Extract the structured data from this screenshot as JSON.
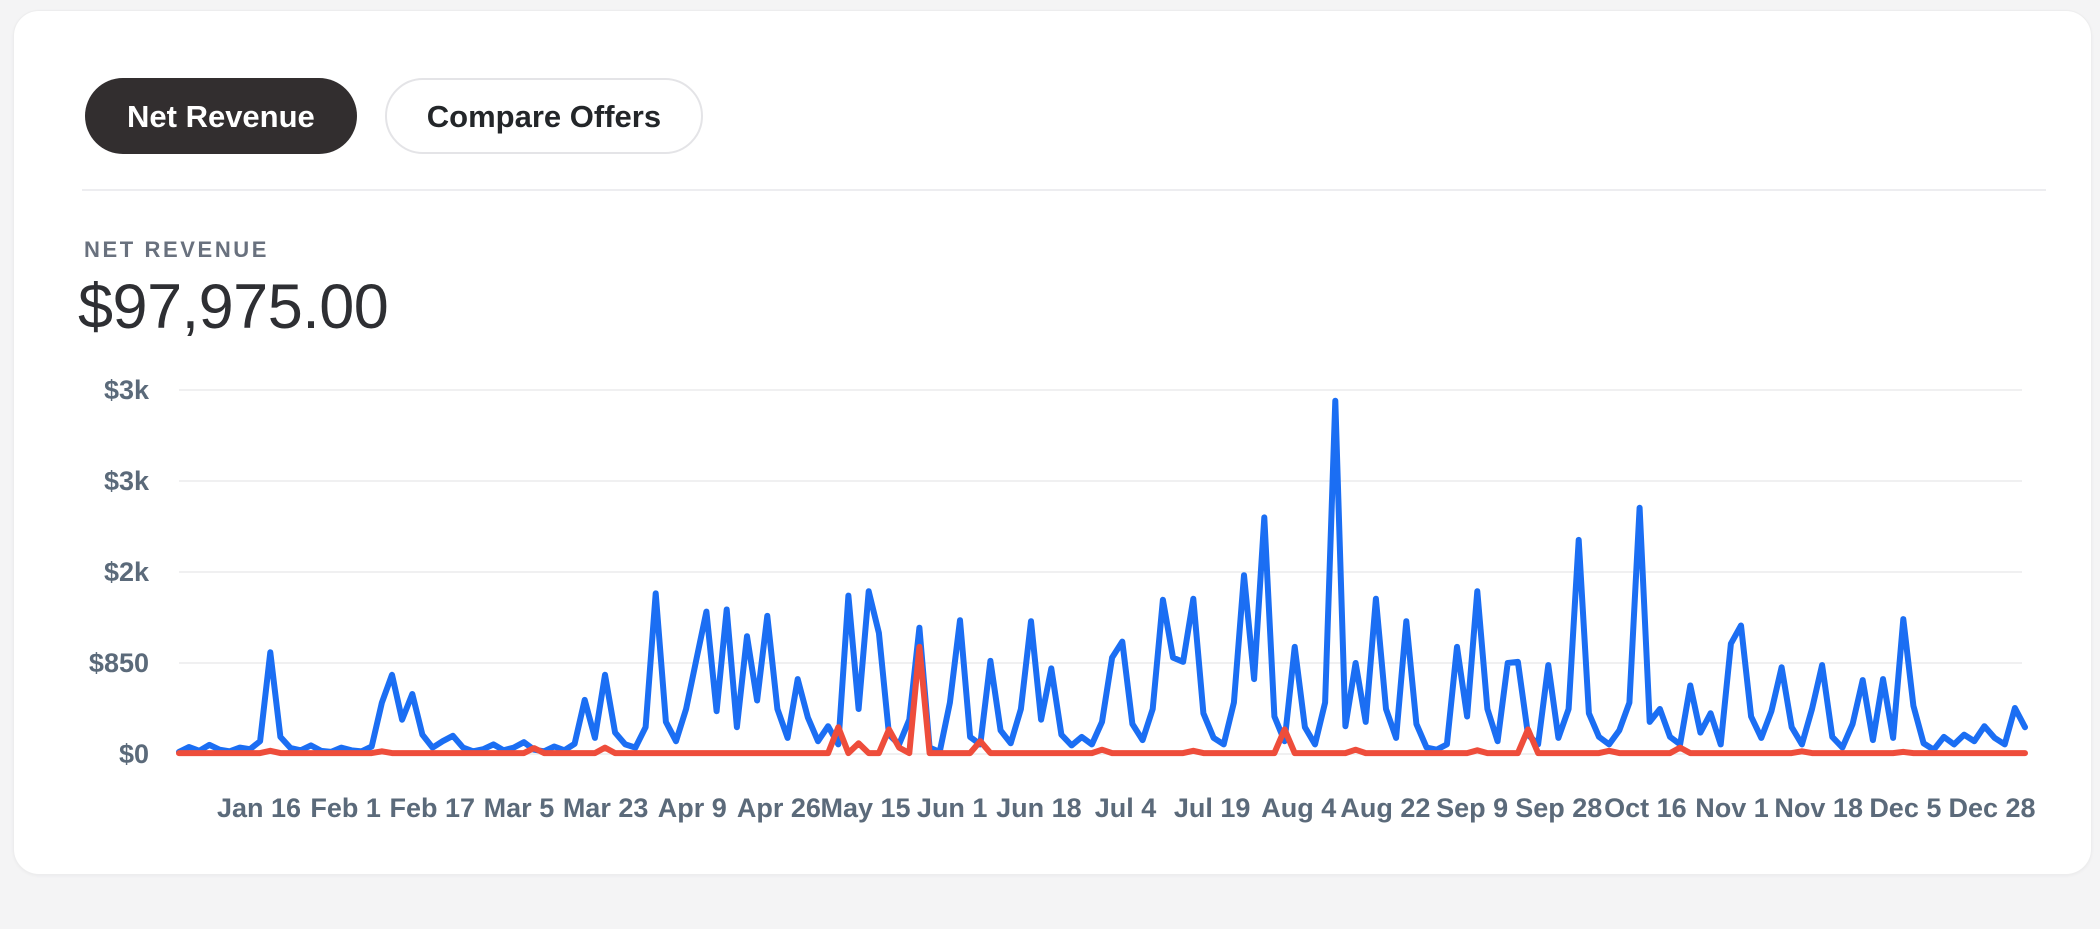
{
  "page": {
    "background_color": "#f4f4f5",
    "card_color": "#ffffff"
  },
  "toolbar": {
    "net_revenue_label": "Net Revenue",
    "compare_offers_label": "Compare Offers",
    "active_tab_color": "#322e2f"
  },
  "summary": {
    "label": "NET REVENUE",
    "value": "$97,975.00"
  },
  "chart_data": {
    "type": "line",
    "title": "Net revenue over one year (daily)",
    "xlabel": "",
    "ylabel": "",
    "ylim": [
      0,
      3400
    ],
    "grid": true,
    "legend_position": "none",
    "grid_color": "#f0f0f1",
    "tick_text_color": "#5b6a7a",
    "y_ticks": [
      {
        "value": 0,
        "label": "$0"
      },
      {
        "value": 850,
        "label": "$850"
      },
      {
        "value": 1700,
        "label": "$2k"
      },
      {
        "value": 2550,
        "label": "$3k"
      },
      {
        "value": 3400,
        "label": "$3k"
      }
    ],
    "x_tick_labels": [
      "Jan 16",
      "Feb 1",
      "Feb 17",
      "Mar 5",
      "Mar 23",
      "Apr 9",
      "Apr 26",
      "May 15",
      "Jun 1",
      "Jun 18",
      "Jul 4",
      "Jul 19",
      "Aug 4",
      "Aug 22",
      "Sep 9",
      "Sep 28",
      "Oct 16",
      "Nov 1",
      "Nov 18",
      "Dec 5",
      "Dec 28"
    ],
    "series": [
      {
        "name": "net-revenue-line",
        "color": "#1b6ef3",
        "values": [
          20,
          65,
          30,
          85,
          40,
          25,
          60,
          45,
          120,
          950,
          160,
          55,
          35,
          80,
          30,
          20,
          60,
          35,
          25,
          70,
          480,
          740,
          320,
          560,
          180,
          60,
          120,
          170,
          60,
          25,
          45,
          90,
          35,
          60,
          110,
          40,
          25,
          70,
          35,
          95,
          505,
          150,
          740,
          200,
          90,
          60,
          250,
          1500,
          300,
          120,
          420,
          880,
          1330,
          400,
          1350,
          250,
          1100,
          500,
          1290,
          420,
          150,
          700,
          340,
          120,
          260,
          90,
          1480,
          420,
          1520,
          1130,
          180,
          90,
          320,
          1180,
          60,
          20,
          480,
          1250,
          160,
          90,
          870,
          220,
          100,
          420,
          1240,
          320,
          800,
          180,
          80,
          160,
          90,
          300,
          900,
          1050,
          280,
          130,
          420,
          1440,
          900,
          860,
          1450,
          380,
          150,
          90,
          480,
          1670,
          700,
          2210,
          350,
          120,
          1000,
          250,
          90,
          480,
          3300,
          260,
          850,
          300,
          1450,
          420,
          150,
          1240,
          280,
          60,
          40,
          90,
          1000,
          350,
          1520,
          420,
          120,
          850,
          860,
          180,
          90,
          830,
          150,
          420,
          2000,
          380,
          160,
          90,
          220,
          480,
          2300,
          300,
          420,
          160,
          90,
          640,
          200,
          380,
          90,
          1030,
          1200,
          350,
          150,
          400,
          810,
          250,
          90,
          420,
          830,
          160,
          60,
          280,
          690,
          130,
          700,
          150,
          1260,
          450,
          100,
          40,
          160,
          90,
          180,
          120,
          260,
          150,
          90,
          430,
          250
        ]
      },
      {
        "name": "comparison-line",
        "color": "#ee4d3b",
        "values": [
          8,
          8,
          8,
          8,
          8,
          8,
          8,
          8,
          8,
          30,
          8,
          8,
          8,
          8,
          8,
          8,
          8,
          8,
          8,
          8,
          25,
          8,
          8,
          8,
          8,
          8,
          8,
          8,
          8,
          8,
          8,
          8,
          8,
          8,
          8,
          55,
          8,
          8,
          8,
          8,
          8,
          8,
          60,
          8,
          8,
          8,
          8,
          8,
          8,
          8,
          8,
          8,
          8,
          8,
          8,
          8,
          8,
          8,
          8,
          8,
          8,
          8,
          8,
          8,
          8,
          250,
          8,
          100,
          8,
          8,
          230,
          60,
          8,
          1000,
          8,
          8,
          8,
          8,
          8,
          120,
          8,
          8,
          8,
          8,
          8,
          8,
          8,
          8,
          8,
          8,
          8,
          40,
          8,
          8,
          8,
          8,
          8,
          8,
          8,
          8,
          30,
          8,
          8,
          8,
          8,
          8,
          8,
          8,
          8,
          230,
          8,
          8,
          8,
          8,
          8,
          8,
          40,
          8,
          8,
          8,
          8,
          8,
          8,
          8,
          8,
          8,
          8,
          8,
          35,
          8,
          8,
          8,
          8,
          230,
          8,
          8,
          8,
          8,
          8,
          8,
          8,
          30,
          8,
          8,
          8,
          8,
          8,
          8,
          60,
          8,
          8,
          8,
          8,
          8,
          8,
          8,
          8,
          8,
          8,
          8,
          25,
          8,
          8,
          8,
          8,
          8,
          8,
          8,
          8,
          8,
          20,
          8,
          8,
          8,
          8,
          8,
          8,
          8,
          8,
          8,
          8,
          8,
          8
        ]
      }
    ]
  }
}
